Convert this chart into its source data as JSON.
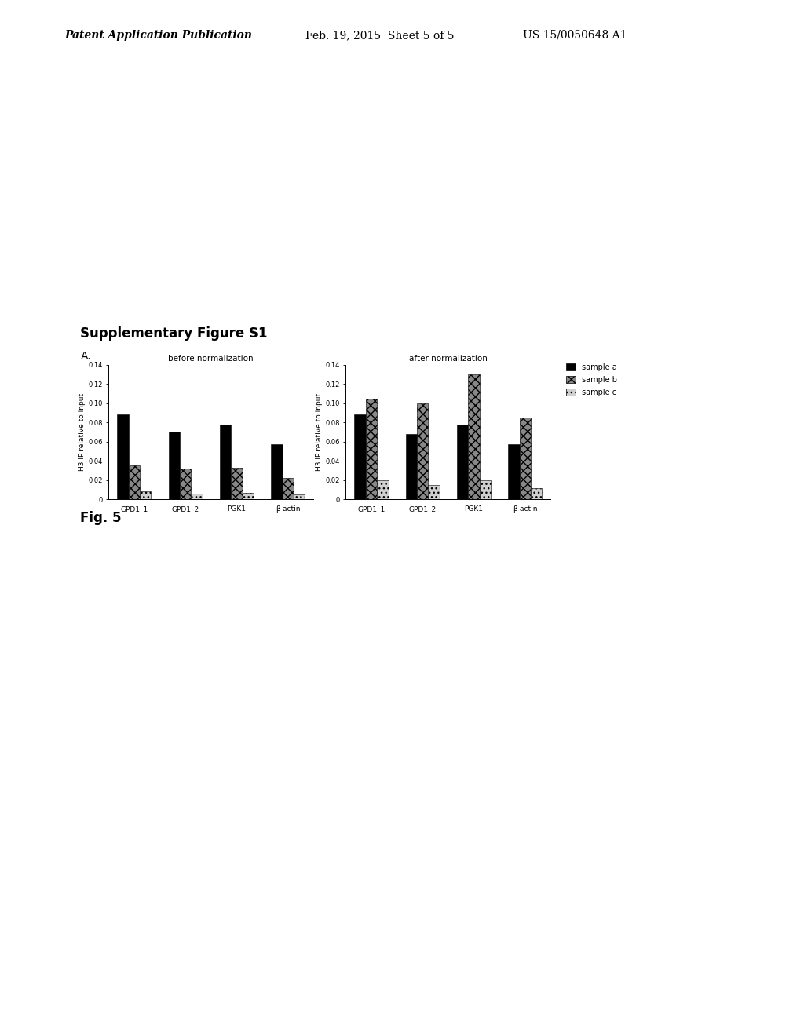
{
  "fig_title": "Supplementary Figure S1",
  "panel_label": "A.",
  "fig_caption": "Fig. 5",
  "left_chart": {
    "title": "before normalization",
    "ylabel": "H3 IP relative to input",
    "categories": [
      "GPD1_1",
      "GPD1_2",
      "PGK1",
      "β-actin"
    ],
    "sample_a": [
      0.088,
      0.07,
      0.078,
      0.057
    ],
    "sample_b": [
      0.035,
      0.032,
      0.033,
      0.022
    ],
    "sample_c": [
      0.008,
      0.006,
      0.007,
      0.005
    ],
    "ylim": [
      0,
      0.14
    ],
    "yticks": [
      0,
      0.02,
      0.04,
      0.06,
      0.08,
      0.1,
      0.12,
      0.14
    ]
  },
  "right_chart": {
    "title": "after normalization",
    "ylabel": "H3 IP relative to input",
    "categories": [
      "GPD1_1",
      "GPD1_2",
      "PGK1",
      "β-actin"
    ],
    "sample_a": [
      0.088,
      0.068,
      0.078,
      0.057
    ],
    "sample_b": [
      0.105,
      0.1,
      0.13,
      0.085
    ],
    "sample_c": [
      0.02,
      0.015,
      0.02,
      0.012
    ],
    "ylim": [
      0,
      0.14
    ],
    "yticks": [
      0,
      0.02,
      0.04,
      0.06,
      0.08,
      0.1,
      0.12,
      0.14
    ]
  },
  "color_a": "#000000",
  "color_b": "#888888",
  "color_c": "#d0d0d0",
  "hatch_a": "",
  "hatch_b": "xxx",
  "hatch_c": "...",
  "header_left": "Patent Application Publication",
  "header_mid": "Feb. 19, 2015  Sheet 5 of 5",
  "header_right": "US 15/0050648 A1"
}
